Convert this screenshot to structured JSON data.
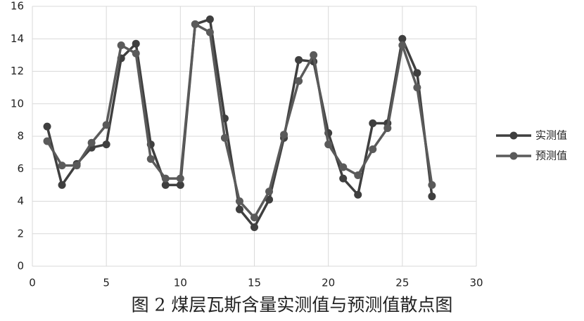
{
  "chart_data": {
    "type": "line",
    "caption": "图 2 煤层瓦斯含量实测值与预测值散点图",
    "x": [
      1,
      2,
      3,
      4,
      5,
      6,
      7,
      8,
      9,
      10,
      11,
      12,
      13,
      14,
      15,
      16,
      17,
      18,
      19,
      20,
      21,
      22,
      23,
      24,
      25,
      26,
      27
    ],
    "series": [
      {
        "name": "实测值",
        "color": "#3f3f3f",
        "values": [
          8.6,
          5.0,
          6.3,
          7.3,
          7.5,
          12.8,
          13.7,
          7.5,
          5.0,
          5.0,
          14.9,
          15.2,
          9.1,
          3.5,
          2.4,
          4.1,
          7.9,
          12.7,
          12.6,
          8.2,
          5.4,
          4.4,
          8.8,
          8.8,
          14.0,
          11.9,
          4.3
        ]
      },
      {
        "name": "预测值",
        "color": "#5a5a5a",
        "values": [
          7.7,
          6.2,
          6.2,
          7.6,
          8.7,
          13.6,
          13.1,
          6.6,
          5.4,
          5.4,
          14.9,
          14.4,
          7.9,
          4.0,
          3.0,
          4.6,
          8.1,
          11.4,
          13.0,
          7.5,
          6.1,
          5.6,
          7.2,
          8.5,
          13.6,
          11.0,
          5.0
        ]
      }
    ],
    "xlim": [
      0,
      30
    ],
    "xticks": [
      0,
      5,
      10,
      15,
      20,
      25,
      30
    ],
    "ylim": [
      0,
      16
    ],
    "yticks": [
      0,
      2,
      4,
      6,
      8,
      10,
      12,
      14,
      16
    ],
    "grid": true,
    "legend": "right"
  }
}
